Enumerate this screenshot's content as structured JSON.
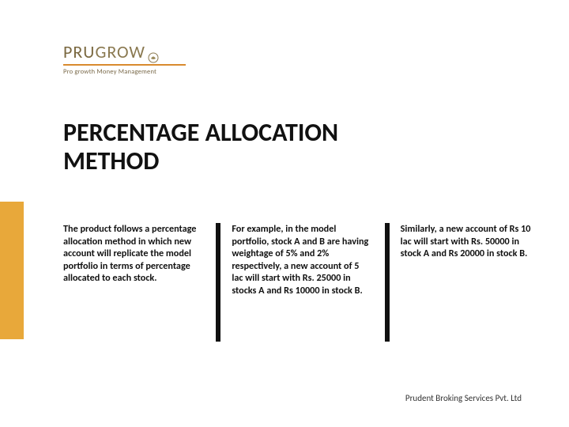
{
  "logo": {
    "brand_part1": "PRU",
    "brand_part2": "GROW",
    "tagline": "Pro growth Money Management",
    "brand_color1": "#7a6840",
    "brand_color2": "#8a7950",
    "underline_color": "#d88a2e"
  },
  "title": "PERCENTAGE ALLOCATION METHOD",
  "sidebar_color": "#e8a83a",
  "columns": [
    "The product follows a percentage allocation method in which new account will replicate the model portfolio in terms of percentage allocated to each stock.",
    "For example, in the model portfolio, stock A and B are having weightage of 5% and 2% respectively, a new account of 5 lac will start with Rs. 25000 in stocks A and Rs 10000 in stock B.",
    "Similarly, a new account of Rs 10 lac will start with Rs. 50000 in stock A and Rs 20000 in stock B."
  ],
  "footer": "Prudent Broking Services Pvt. Ltd"
}
